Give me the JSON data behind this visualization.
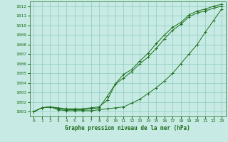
{
  "bg_color": "#c8eae4",
  "grid_color": "#88ccbb",
  "line_color": "#1a6e1a",
  "marker_color": "#1a6e1a",
  "xlabel": "Graphe pression niveau de la mer (hPa)",
  "ylabel_ticks": [
    1001,
    1002,
    1003,
    1004,
    1005,
    1006,
    1007,
    1008,
    1009,
    1010,
    1011,
    1012
  ],
  "xlim": [
    -0.5,
    23.5
  ],
  "ylim": [
    1000.5,
    1012.5
  ],
  "xticks": [
    0,
    1,
    2,
    3,
    4,
    5,
    6,
    7,
    8,
    9,
    10,
    11,
    12,
    13,
    14,
    15,
    16,
    17,
    18,
    19,
    20,
    21,
    22,
    23
  ],
  "line1_x": [
    0,
    1,
    2,
    3,
    4,
    5,
    6,
    7,
    8,
    9,
    10,
    11,
    12,
    13,
    14,
    15,
    16,
    17,
    18,
    19,
    20,
    21,
    22,
    23
  ],
  "line1_y": [
    1001.0,
    1001.4,
    1001.5,
    1001.4,
    1001.3,
    1001.3,
    1001.3,
    1001.4,
    1001.5,
    1002.2,
    1003.9,
    1004.5,
    1005.2,
    1006.0,
    1006.7,
    1007.6,
    1008.6,
    1009.5,
    1010.1,
    1010.9,
    1011.3,
    1011.5,
    1011.8,
    1012.0
  ],
  "line2_x": [
    0,
    1,
    2,
    3,
    4,
    5,
    6,
    7,
    8,
    9,
    10,
    11,
    12,
    13,
    14,
    15,
    16,
    17,
    18,
    19,
    20,
    21,
    22,
    23
  ],
  "line2_y": [
    1001.0,
    1001.4,
    1001.5,
    1001.2,
    1001.1,
    1001.1,
    1001.1,
    1001.1,
    1001.2,
    1001.3,
    1001.4,
    1001.5,
    1001.9,
    1002.3,
    1002.9,
    1003.5,
    1004.2,
    1005.0,
    1006.0,
    1007.0,
    1008.0,
    1009.3,
    1010.5,
    1011.7
  ],
  "line3_x": [
    0,
    1,
    2,
    3,
    4,
    5,
    6,
    7,
    8,
    9,
    10,
    11,
    12,
    13,
    14,
    15,
    16,
    17,
    18,
    19,
    20,
    21,
    22,
    23
  ],
  "line3_y": [
    1001.0,
    1001.4,
    1001.5,
    1001.3,
    1001.2,
    1001.2,
    1001.2,
    1001.3,
    1001.4,
    1002.6,
    1003.9,
    1004.9,
    1005.4,
    1006.3,
    1007.1,
    1008.1,
    1009.0,
    1009.8,
    1010.3,
    1011.1,
    1011.5,
    1011.7,
    1012.0,
    1012.2
  ]
}
